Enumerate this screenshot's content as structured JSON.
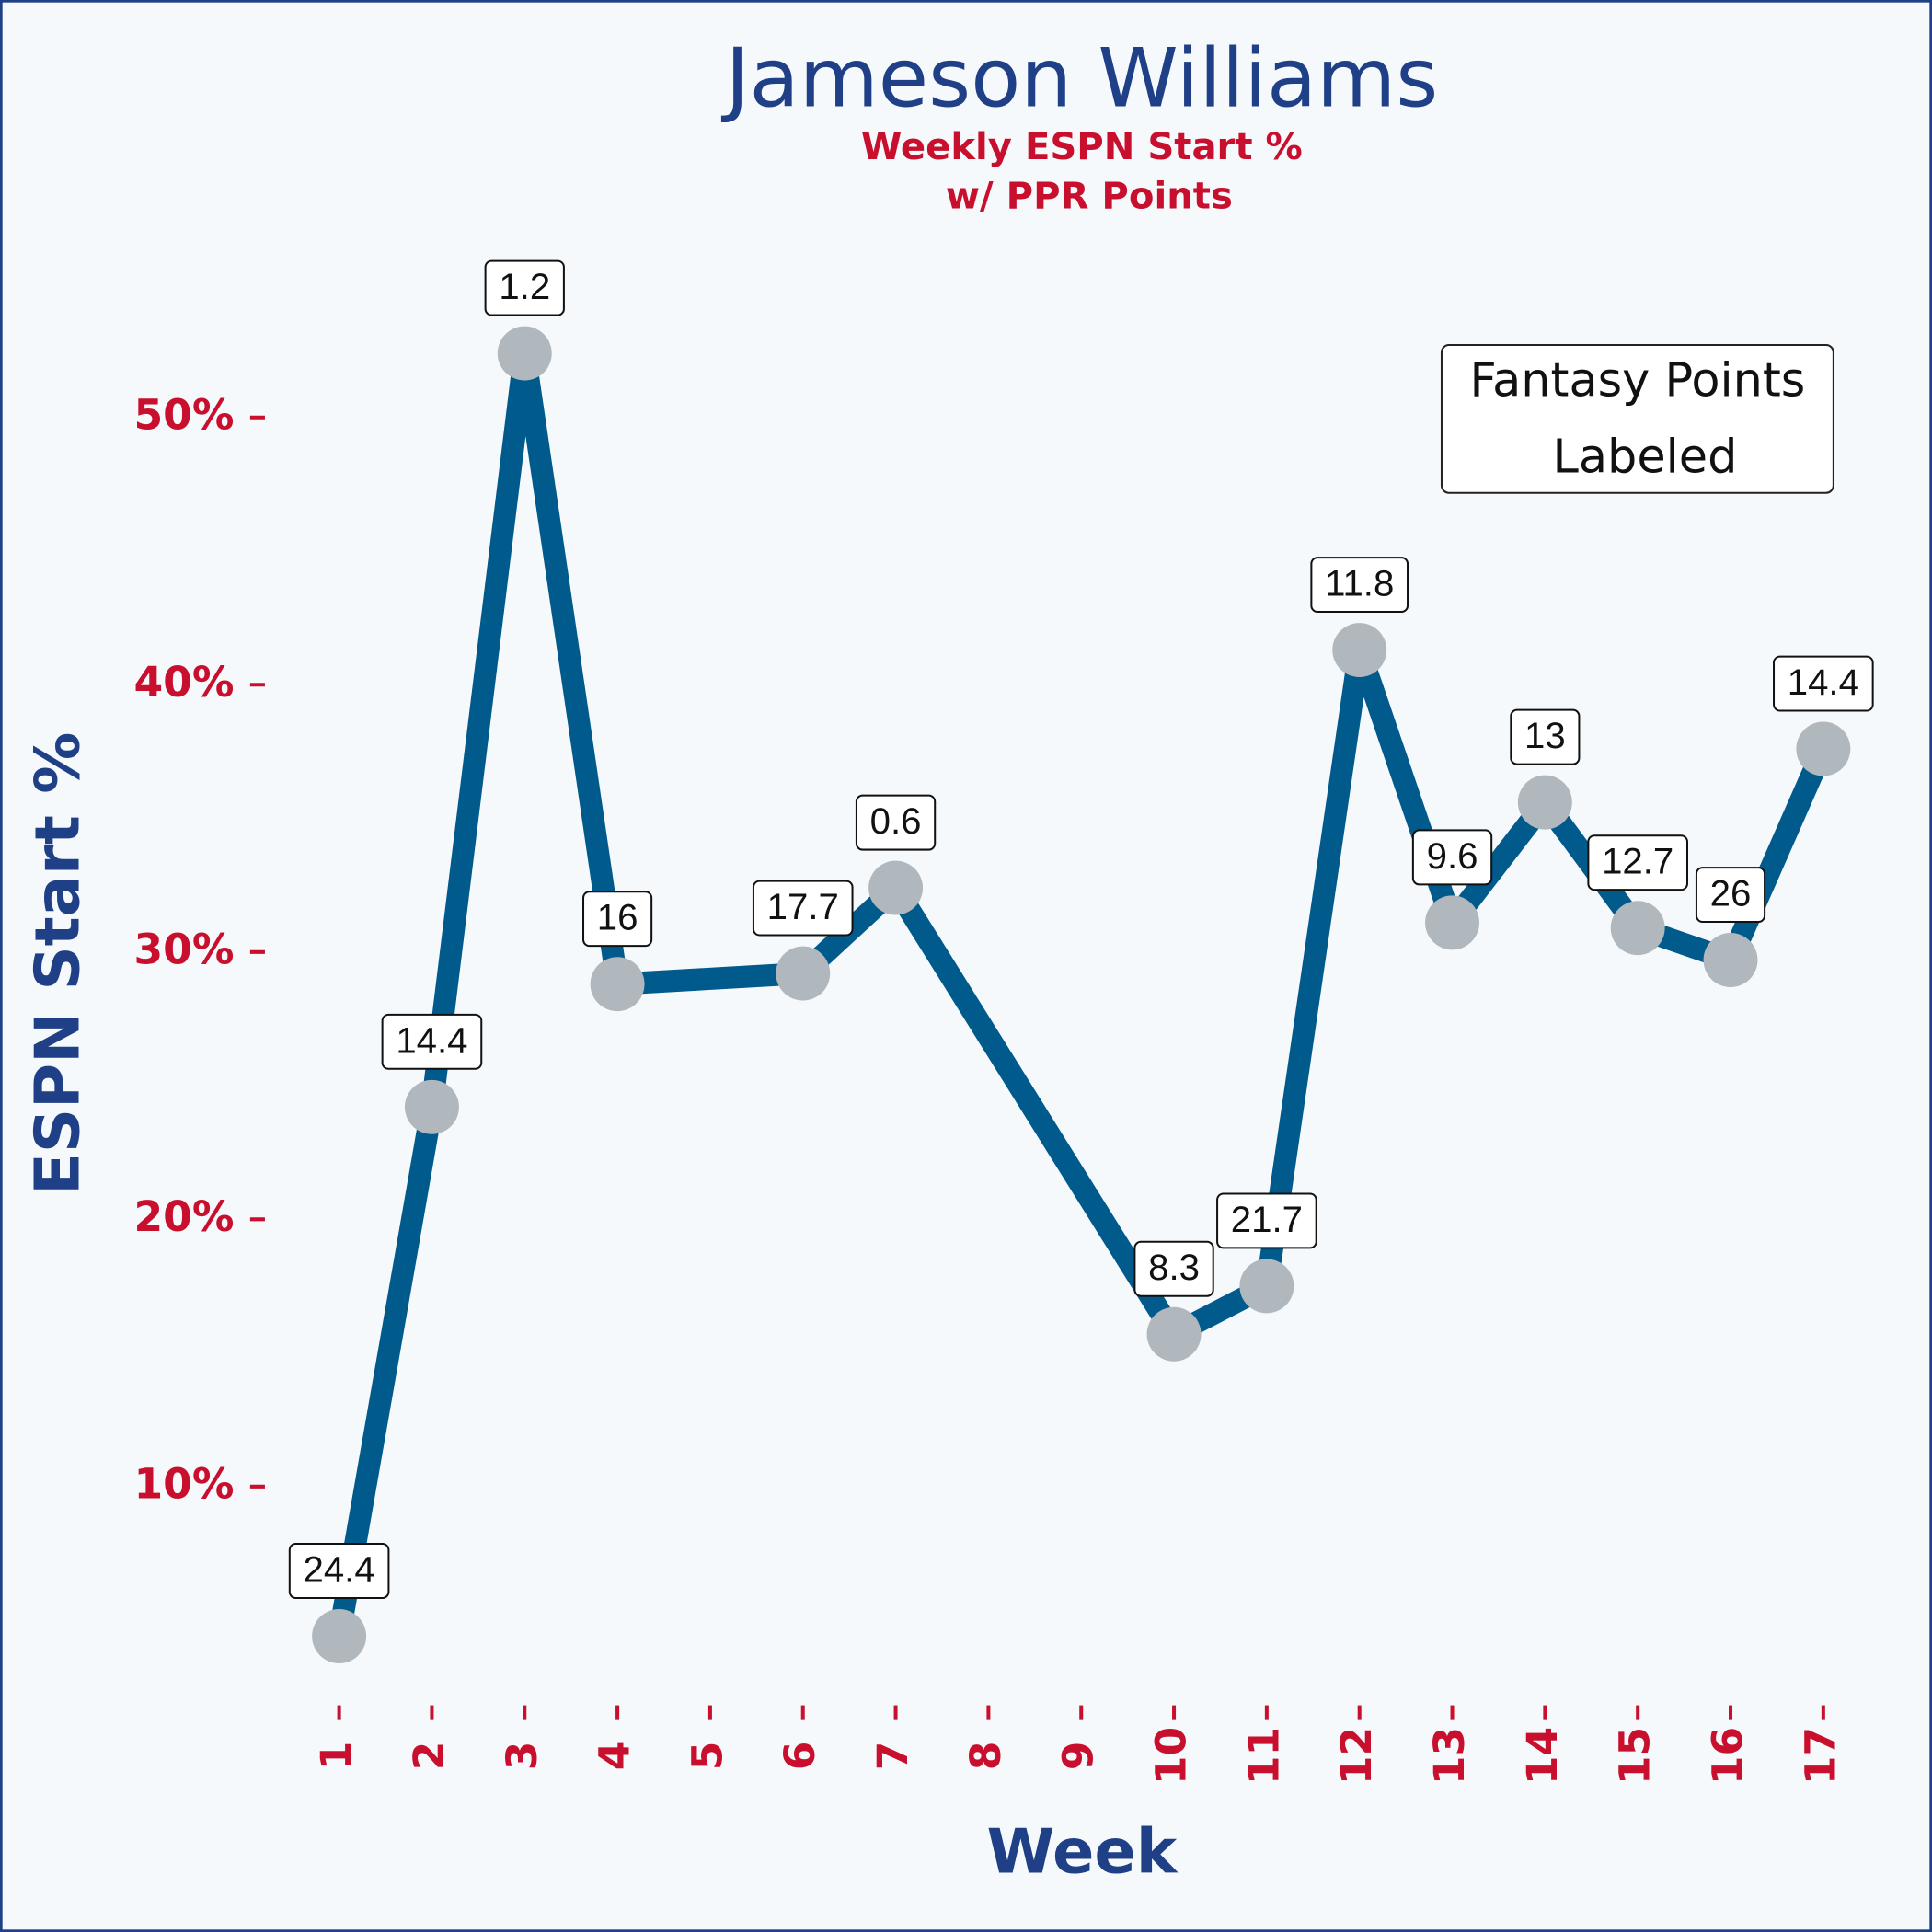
{
  "chart_data": {
    "type": "line",
    "title": "Jameson Williams",
    "subtitle": [
      "Weekly ESPN Start %",
      "w/ PPR Points"
    ],
    "x_label": "Week",
    "y_label": "ESPN Start %",
    "annotation": [
      "Fantasy Points",
      "Labeled"
    ],
    "x": [
      1,
      2,
      3,
      4,
      6,
      7,
      10,
      11,
      12,
      13,
      14,
      15,
      16,
      17
    ],
    "values": [
      4.4,
      24.2,
      52.4,
      28.8,
      29.2,
      32.4,
      15.7,
      17.5,
      41.3,
      31.1,
      35.6,
      30.9,
      29.7,
      37.6
    ],
    "point_labels": [
      "24.4",
      "14.4",
      "1.2",
      "16",
      "17.7",
      "0.6",
      "8.3",
      "21.7",
      "11.8",
      "9.6",
      "13",
      "12.7",
      "26",
      "14.4"
    ],
    "color": "#005a8c",
    "marker_color": "#b0b7bd",
    "xlim": [
      0.2,
      17.8
    ],
    "xticks": [
      1,
      2,
      3,
      4,
      5,
      6,
      7,
      8,
      9,
      10,
      11,
      12,
      13,
      14,
      15,
      16,
      17
    ],
    "ylim": [
      2,
      57
    ],
    "yticks": [
      {
        "value": 10,
        "label": "10%"
      },
      {
        "value": 20,
        "label": "20%"
      },
      {
        "value": 30,
        "label": "30%"
      },
      {
        "value": 40,
        "label": "40%"
      },
      {
        "value": 50,
        "label": "50%"
      }
    ]
  }
}
